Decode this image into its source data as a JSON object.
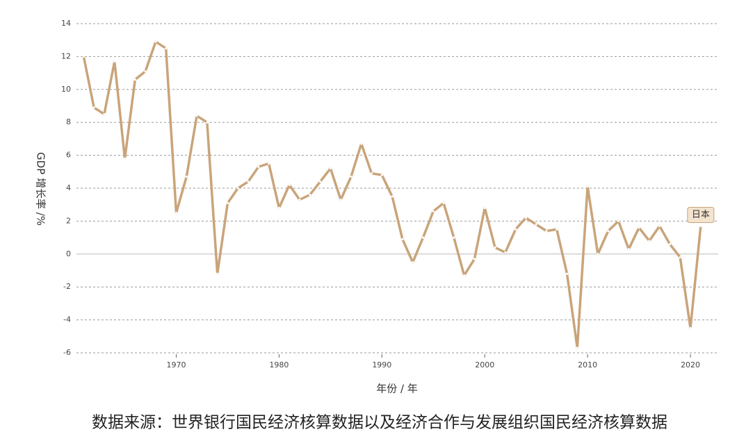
{
  "chart_data": {
    "type": "line",
    "y_label": "GDP 增长率 /%",
    "x_label": "年份 / 年",
    "source": "数据来源：世界银行国民经济核算数据以及经济合作与发展组织国民经济核算数据",
    "x": [
      1961,
      1962,
      1963,
      1964,
      1965,
      1966,
      1967,
      1968,
      1969,
      1970,
      1971,
      1972,
      1973,
      1974,
      1975,
      1976,
      1977,
      1978,
      1979,
      1980,
      1981,
      1982,
      1983,
      1984,
      1985,
      1986,
      1987,
      1988,
      1989,
      1990,
      1991,
      1992,
      1993,
      1994,
      1995,
      1996,
      1997,
      1998,
      1999,
      2000,
      2001,
      2002,
      2003,
      2004,
      2005,
      2006,
      2007,
      2008,
      2009,
      2010,
      2011,
      2012,
      2013,
      2014,
      2015,
      2016,
      2017,
      2018,
      2019,
      2020,
      2021
    ],
    "series": [
      {
        "name": "日本",
        "color": "#c9a47a",
        "values": [
          12.0,
          8.9,
          8.5,
          11.7,
          5.8,
          10.6,
          11.1,
          12.9,
          12.5,
          2.5,
          4.7,
          8.4,
          8.0,
          -1.2,
          3.1,
          4.0,
          4.4,
          5.3,
          5.5,
          2.8,
          4.2,
          3.3,
          3.6,
          4.4,
          5.2,
          3.3,
          4.7,
          6.7,
          4.9,
          4.8,
          3.5,
          0.9,
          -0.5,
          1.0,
          2.6,
          3.1,
          1.0,
          -1.3,
          -0.3,
          2.8,
          0.4,
          0.1,
          1.5,
          2.2,
          1.8,
          1.4,
          1.5,
          -1.2,
          -5.7,
          4.1,
          0.0,
          1.4,
          2.0,
          0.3,
          1.6,
          0.8,
          1.7,
          0.6,
          -0.2,
          -4.5,
          1.7
        ]
      }
    ],
    "xlim": [
      1960.3,
      2022.7
    ],
    "xticks": [
      1970,
      1980,
      1990,
      2000,
      2010,
      2020
    ],
    "ylim": [
      -6,
      14
    ],
    "yticks": [
      -6,
      -4,
      -2,
      0,
      2,
      4,
      6,
      8,
      10,
      12,
      14
    ],
    "grid": true
  }
}
